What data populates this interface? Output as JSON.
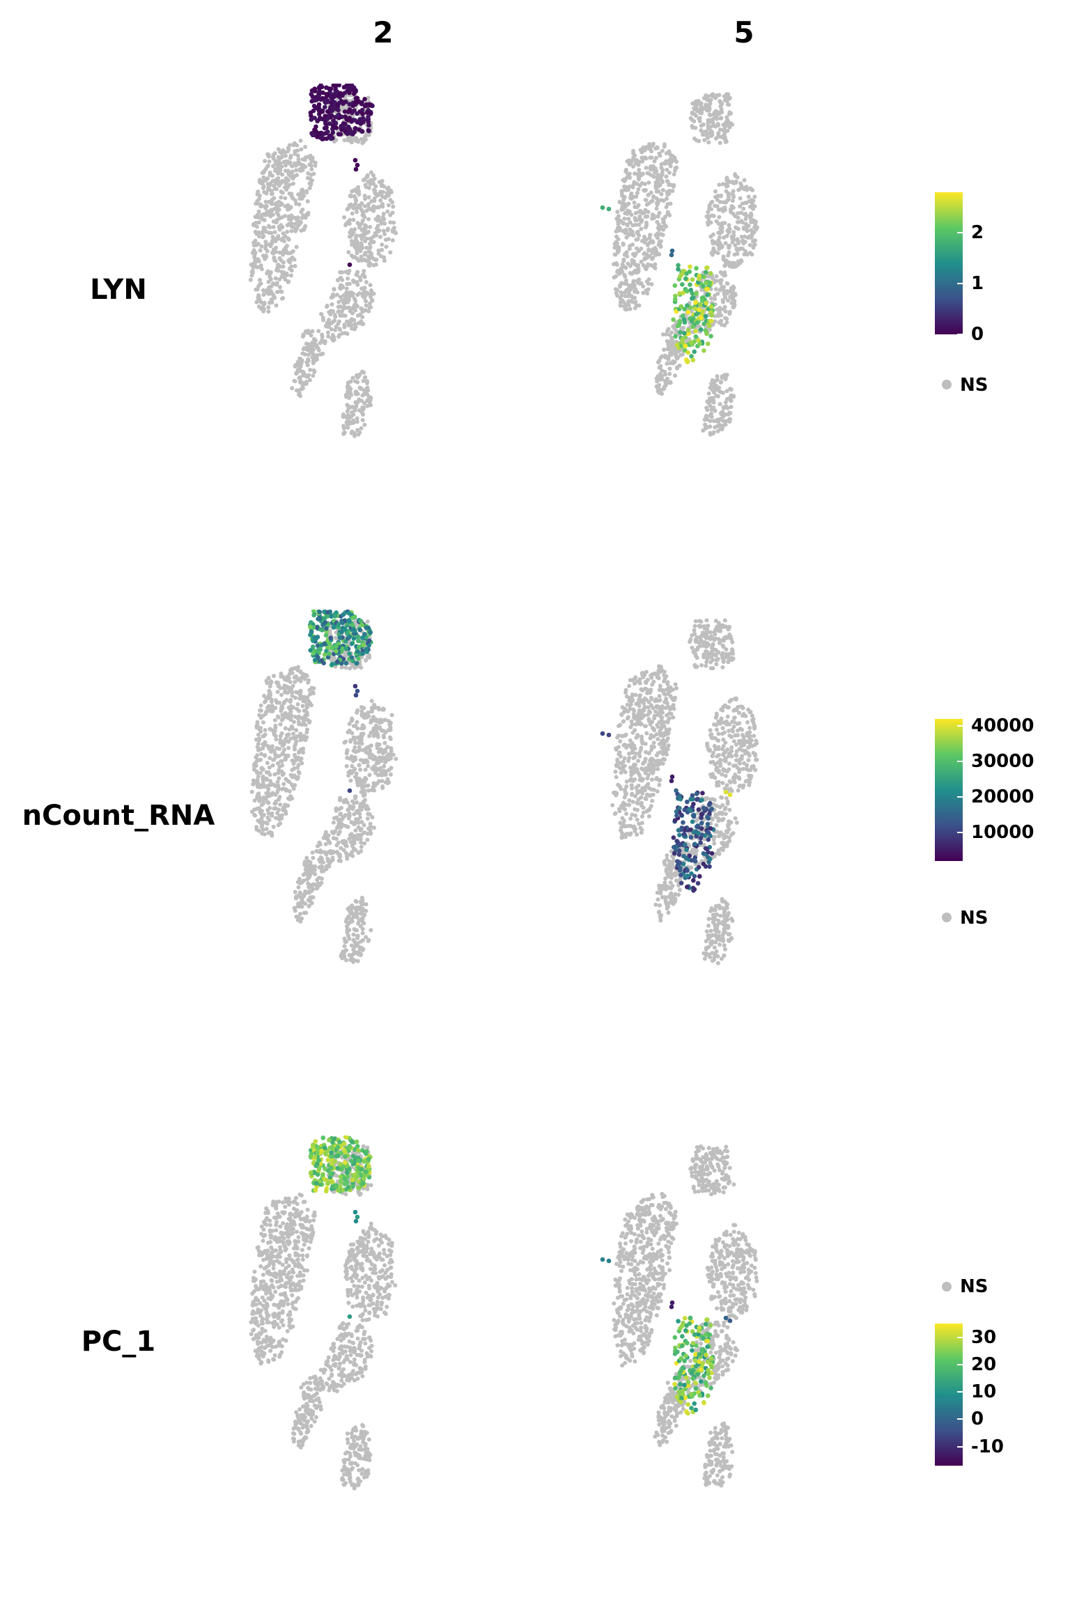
{
  "figure": {
    "columns": [
      "2",
      "5"
    ],
    "rows": [
      "LYN",
      "nCount_RNA",
      "PC_1"
    ],
    "na_label": "NS",
    "na_color": "#bebebe",
    "palette": [
      "#440154",
      "#3b528b",
      "#21908c",
      "#5dc863",
      "#fde725"
    ]
  },
  "chart_data": {
    "type": "scatter",
    "panels": [
      {
        "row": "LYN",
        "column": "2",
        "legend_range": [
          0,
          2.8
        ],
        "ticks": [
          "2",
          "1",
          "0"
        ],
        "tick_values": [
          2,
          1,
          0
        ],
        "highlight": [
          {
            "cluster": "top-blob",
            "range": [
              0,
              0.2
            ]
          },
          {
            "cluster": "right-points",
            "range": [
              0,
              0.1
            ]
          }
        ]
      },
      {
        "row": "LYN",
        "column": "5",
        "legend_range": [
          0,
          2.8
        ],
        "ticks": [
          "2",
          "1",
          "0"
        ],
        "tick_values": [
          2,
          1,
          0
        ],
        "highlight": [
          {
            "cluster": "lower-lobe",
            "range": [
              1.6,
              2.8
            ]
          },
          {
            "cluster": "far-left",
            "range": [
              1.7,
              2.0
            ]
          },
          {
            "cluster": "right-upper",
            "range": [
              0.8,
              1.0
            ]
          }
        ]
      },
      {
        "row": "nCount_RNA",
        "column": "2",
        "legend_range": [
          2000,
          42000
        ],
        "ticks": [
          "40000",
          "30000",
          "20000",
          "10000"
        ],
        "tick_values": [
          40000,
          30000,
          20000,
          10000
        ],
        "highlight": [
          {
            "cluster": "top-blob",
            "range": [
              12000,
              34000
            ]
          },
          {
            "cluster": "right-points",
            "range": [
              8000,
              12000
            ]
          }
        ]
      },
      {
        "row": "nCount_RNA",
        "column": "5",
        "legend_range": [
          2000,
          42000
        ],
        "ticks": [
          "40000",
          "30000",
          "20000",
          "10000"
        ],
        "tick_values": [
          40000,
          30000,
          20000,
          10000
        ],
        "highlight": [
          {
            "cluster": "lower-lobe",
            "range": [
              6000,
              20000
            ]
          },
          {
            "cluster": "far-left",
            "range": [
              8000,
              11000
            ]
          },
          {
            "cluster": "right-upper",
            "range": [
              5000,
              7000
            ]
          },
          {
            "cluster": "mid-right",
            "range": [
              40000,
              42000
            ]
          }
        ]
      },
      {
        "row": "PC_1",
        "column": "2",
        "legend_range": [
          -17,
          35
        ],
        "ticks": [
          "30",
          "20",
          "10",
          "0",
          "-10"
        ],
        "tick_values": [
          30,
          20,
          10,
          0,
          -10
        ],
        "highlight": [
          {
            "cluster": "top-blob",
            "range": [
              15,
              33
            ]
          },
          {
            "cluster": "right-points",
            "range": [
              8,
              12
            ]
          }
        ]
      },
      {
        "row": "PC_1",
        "column": "5",
        "legend_range": [
          -17,
          35
        ],
        "ticks": [
          "30",
          "20",
          "10",
          "0",
          "-10"
        ],
        "tick_values": [
          30,
          20,
          10,
          0,
          -10
        ],
        "highlight": [
          {
            "cluster": "lower-lobe",
            "range": [
              10,
              34
            ]
          },
          {
            "cluster": "far-left",
            "range": [
              3,
              7
            ]
          },
          {
            "cluster": "right-upper",
            "range": [
              -14,
              -12
            ]
          },
          {
            "cluster": "mid-right",
            "range": [
              -2,
              0
            ]
          }
        ]
      }
    ]
  }
}
